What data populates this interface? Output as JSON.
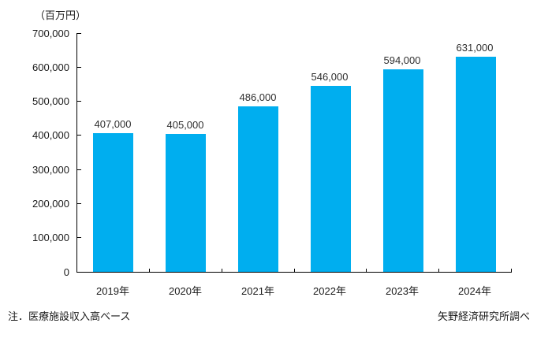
{
  "chart_data": {
    "type": "bar",
    "title": "",
    "unit_label": "（百万円）",
    "categories": [
      "2019年",
      "2020年",
      "2021年",
      "2022年",
      "2023年",
      "2024年"
    ],
    "values": [
      407000,
      405000,
      486000,
      546000,
      594000,
      631000
    ],
    "value_labels": [
      "407,000",
      "405,000",
      "486,000",
      "546,000",
      "594,000",
      "631,000"
    ],
    "ylim": [
      0,
      700000
    ],
    "y_tick_interval": 100000,
    "y_tick_labels": [
      "0",
      "100,000",
      "200,000",
      "300,000",
      "400,000",
      "500,000",
      "600,000",
      "700,000"
    ],
    "bar_color": "#00AEEF",
    "axis_color": "#000000",
    "grid": false,
    "legend": "none"
  },
  "footer": {
    "note_left": "注．医療施設収入高ベース",
    "note_right": "矢野経済研究所調べ"
  }
}
